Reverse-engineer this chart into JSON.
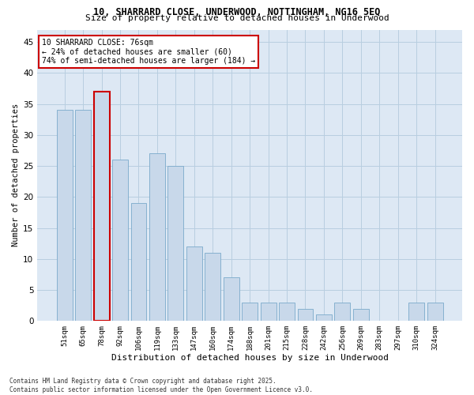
{
  "title_line1": "10, SHARRARD CLOSE, UNDERWOOD, NOTTINGHAM, NG16 5EQ",
  "title_line2": "Size of property relative to detached houses in Underwood",
  "xlabel": "Distribution of detached houses by size in Underwood",
  "ylabel": "Number of detached properties",
  "categories": [
    "51sqm",
    "65sqm",
    "78sqm",
    "92sqm",
    "106sqm",
    "119sqm",
    "133sqm",
    "147sqm",
    "160sqm",
    "174sqm",
    "188sqm",
    "201sqm",
    "215sqm",
    "228sqm",
    "242sqm",
    "256sqm",
    "269sqm",
    "283sqm",
    "297sqm",
    "310sqm",
    "324sqm"
  ],
  "values": [
    34,
    34,
    37,
    26,
    19,
    27,
    25,
    12,
    11,
    7,
    3,
    3,
    3,
    2,
    1,
    3,
    2,
    0,
    0,
    3,
    3
  ],
  "highlighted_index": 2,
  "bar_color": "#c8d8ea",
  "bar_edge_color": "#7aaacb",
  "highlight_edge_color": "#cc0000",
  "highlight_face_color": "#c8d8ea",
  "background_color": "#ffffff",
  "plot_bg_color": "#dde8f4",
  "grid_color": "#b8cee0",
  "annotation_text": "10 SHARRARD CLOSE: 76sqm\n← 24% of detached houses are smaller (60)\n74% of semi-detached houses are larger (184) →",
  "annotation_box_color": "#ffffff",
  "annotation_box_edge_color": "#cc0000",
  "footer_line1": "Contains HM Land Registry data © Crown copyright and database right 2025.",
  "footer_line2": "Contains public sector information licensed under the Open Government Licence v3.0.",
  "ylim": [
    0,
    47
  ],
  "yticks": [
    0,
    5,
    10,
    15,
    20,
    25,
    30,
    35,
    40,
    45
  ]
}
